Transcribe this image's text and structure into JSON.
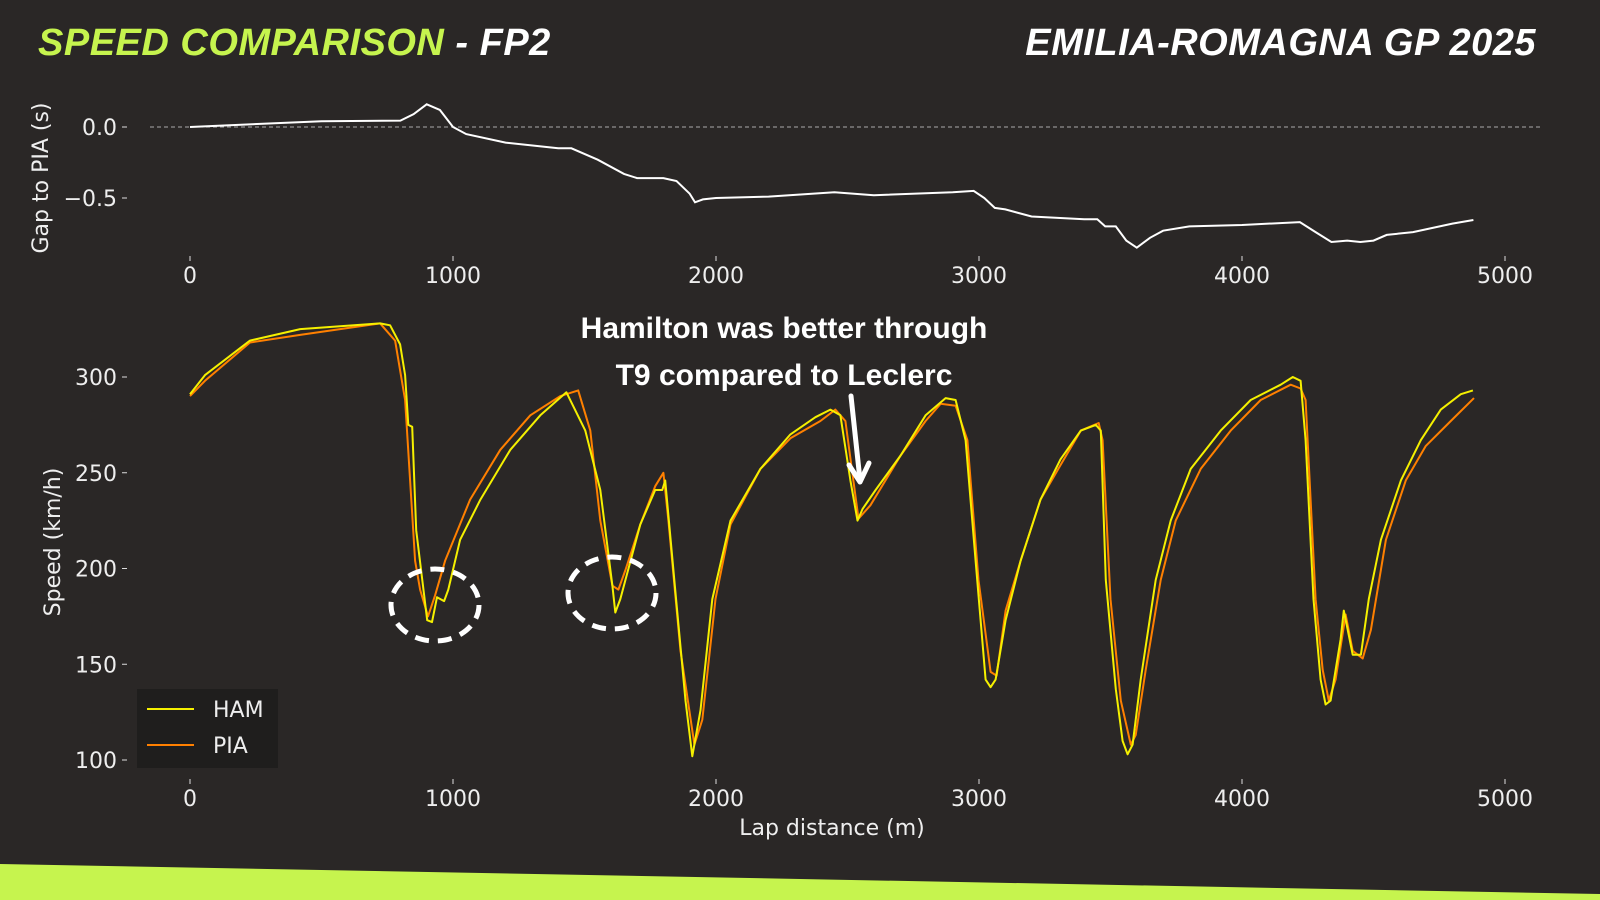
{
  "header": {
    "title_accent": "SPEED COMPARISON",
    "title_rest": " - FP2",
    "event": "EMILIA-ROMAGNA GP 2025"
  },
  "colors": {
    "accent": "#c6f44e",
    "ham": "#f5f000",
    "pia": "#ff8000",
    "gap": "#ffffff",
    "background": "#2a2726"
  },
  "annotation": {
    "line1": "Hamilton was better through",
    "line2": "T9 compared to Leclerc"
  },
  "chart_data": [
    {
      "type": "line",
      "title": "",
      "xlabel": "",
      "ylabel": "Gap to PIA (s)",
      "xlim": [
        -250,
        5100
      ],
      "ylim": [
        -0.95,
        0.3
      ],
      "xticks": [
        "0",
        "1000",
        "2000",
        "3000",
        "4000",
        "5000"
      ],
      "xtick_values": [
        0,
        1000,
        2000,
        3000,
        4000,
        5000
      ],
      "yticks": [
        "0.0",
        "−0.5"
      ],
      "ytick_values": [
        0,
        -0.5
      ],
      "reference_line": 0,
      "series": [
        {
          "name": "Gap",
          "points": [
            [
              0,
              0
            ],
            [
              300,
              0.025
            ],
            [
              500,
              0.04
            ],
            [
              800,
              0.045
            ],
            [
              850,
              0.09
            ],
            [
              900,
              0.16
            ],
            [
              950,
              0.12
            ],
            [
              1000,
              0.0
            ],
            [
              1050,
              -0.05
            ],
            [
              1200,
              -0.11
            ],
            [
              1400,
              -0.15
            ],
            [
              1450,
              -0.15
            ],
            [
              1550,
              -0.23
            ],
            [
              1650,
              -0.33
            ],
            [
              1700,
              -0.36
            ],
            [
              1800,
              -0.36
            ],
            [
              1850,
              -0.38
            ],
            [
              1900,
              -0.47
            ],
            [
              1920,
              -0.53
            ],
            [
              1950,
              -0.51
            ],
            [
              2000,
              -0.5
            ],
            [
              2200,
              -0.49
            ],
            [
              2450,
              -0.46
            ],
            [
              2600,
              -0.48
            ],
            [
              2900,
              -0.46
            ],
            [
              2980,
              -0.45
            ],
            [
              3020,
              -0.5
            ],
            [
              3060,
              -0.57
            ],
            [
              3100,
              -0.58
            ],
            [
              3200,
              -0.63
            ],
            [
              3400,
              -0.65
            ],
            [
              3450,
              -0.65
            ],
            [
              3480,
              -0.7
            ],
            [
              3520,
              -0.7
            ],
            [
              3560,
              -0.8
            ],
            [
              3600,
              -0.85
            ],
            [
              3650,
              -0.78
            ],
            [
              3700,
              -0.73
            ],
            [
              3800,
              -0.7
            ],
            [
              4000,
              -0.69
            ],
            [
              4220,
              -0.67
            ],
            [
              4280,
              -0.74
            ],
            [
              4340,
              -0.81
            ],
            [
              4400,
              -0.8
            ],
            [
              4450,
              -0.81
            ],
            [
              4500,
              -0.8
            ],
            [
              4550,
              -0.76
            ],
            [
              4650,
              -0.74
            ],
            [
              4800,
              -0.68
            ],
            [
              4880,
              -0.655
            ]
          ]
        }
      ]
    },
    {
      "type": "line",
      "title": "",
      "xlabel": "Lap distance (m)",
      "ylabel": "Speed (km/h)",
      "xlim": [
        -250,
        5100
      ],
      "ylim": [
        92,
        335
      ],
      "xticks": [
        "0",
        "1000",
        "2000",
        "3000",
        "4000",
        "5000"
      ],
      "xtick_values": [
        0,
        1000,
        2000,
        3000,
        4000,
        5000
      ],
      "yticks": [
        "100",
        "150",
        "200",
        "250",
        "300"
      ],
      "ytick_values": [
        100,
        150,
        200,
        250,
        300
      ],
      "legend": {
        "placement": "lower-left",
        "entries": [
          "HAM",
          "PIA"
        ]
      },
      "series": [
        {
          "name": "HAM",
          "points": [
            [
              0,
              291
            ],
            [
              57,
              301
            ],
            [
              228,
              319
            ],
            [
              419,
              325
            ],
            [
              723,
              328
            ],
            [
              761,
              327
            ],
            [
              799,
              317
            ],
            [
              818,
              301
            ],
            [
              830,
              275
            ],
            [
              845,
              274
            ],
            [
              860,
              220
            ],
            [
              902,
              173
            ],
            [
              920,
              172
            ],
            [
              939,
              185
            ],
            [
              966,
              183
            ],
            [
              982,
              189
            ],
            [
              1027,
              215
            ],
            [
              1104,
              236
            ],
            [
              1218,
              262
            ],
            [
              1332,
              280
            ],
            [
              1431,
              292
            ],
            [
              1503,
              272
            ],
            [
              1560,
              241
            ],
            [
              1606,
              191
            ],
            [
              1617,
              177
            ],
            [
              1636,
              184
            ],
            [
              1712,
              223
            ],
            [
              1769,
              241
            ],
            [
              1796,
              241
            ],
            [
              1807,
              246
            ],
            [
              1845,
              189
            ],
            [
              1884,
              131
            ],
            [
              1910,
              102
            ],
            [
              1941,
              126
            ],
            [
              1986,
              184
            ],
            [
              2055,
              225
            ],
            [
              2169,
              252
            ],
            [
              2283,
              270
            ],
            [
              2378,
              279
            ],
            [
              2435,
              283
            ],
            [
              2473,
              280
            ],
            [
              2511,
              246
            ],
            [
              2538,
              225
            ],
            [
              2557,
              231
            ],
            [
              2607,
              241
            ],
            [
              2702,
              259
            ],
            [
              2797,
              280
            ],
            [
              2873,
              289
            ],
            [
              2911,
              288
            ],
            [
              2949,
              267
            ],
            [
              2987,
              204
            ],
            [
              3025,
              142
            ],
            [
              3044,
              138
            ],
            [
              3063,
              142
            ],
            [
              3101,
              173
            ],
            [
              3158,
              204
            ],
            [
              3234,
              236
            ],
            [
              3310,
              257
            ],
            [
              3387,
              272
            ],
            [
              3444,
              275
            ],
            [
              3463,
              272
            ],
            [
              3482,
              194
            ],
            [
              3520,
              137
            ],
            [
              3546,
              110
            ],
            [
              3565,
              103
            ],
            [
              3584,
              108
            ],
            [
              3615,
              142
            ],
            [
              3672,
              194
            ],
            [
              3729,
              225
            ],
            [
              3805,
              252
            ],
            [
              3919,
              272
            ],
            [
              4033,
              288
            ],
            [
              4147,
              296
            ],
            [
              4193,
              300
            ],
            [
              4223,
              298
            ],
            [
              4242,
              267
            ],
            [
              4272,
              184
            ],
            [
              4299,
              142
            ],
            [
              4318,
              129
            ],
            [
              4337,
              131
            ],
            [
              4375,
              163
            ],
            [
              4387,
              178
            ],
            [
              4402,
              168
            ],
            [
              4421,
              155
            ],
            [
              4452,
              155
            ],
            [
              4482,
              184
            ],
            [
              4528,
              215
            ],
            [
              4604,
              246
            ],
            [
              4680,
              267
            ],
            [
              4756,
              283
            ],
            [
              4832,
              291
            ],
            [
              4878,
              293
            ]
          ]
        },
        {
          "name": "PIA",
          "points": [
            [
              0,
              290
            ],
            [
              57,
              298
            ],
            [
              228,
              318
            ],
            [
              419,
              322
            ],
            [
              723,
              328
            ],
            [
              780,
              319
            ],
            [
              818,
              288
            ],
            [
              837,
              246
            ],
            [
              856,
              204
            ],
            [
              875,
              189
            ],
            [
              905,
              175
            ],
            [
              932,
              186
            ],
            [
              970,
              204
            ],
            [
              1065,
              236
            ],
            [
              1180,
              262
            ],
            [
              1294,
              280
            ],
            [
              1408,
              290
            ],
            [
              1476,
              293
            ],
            [
              1522,
              272
            ],
            [
              1560,
              225
            ],
            [
              1606,
              191
            ],
            [
              1629,
              189
            ],
            [
              1655,
              199
            ],
            [
              1712,
              223
            ],
            [
              1769,
              243
            ],
            [
              1800,
              250
            ],
            [
              1819,
              225
            ],
            [
              1865,
              157
            ],
            [
              1918,
              108
            ],
            [
              1948,
              121
            ],
            [
              1998,
              184
            ],
            [
              2055,
              223
            ],
            [
              2169,
              252
            ],
            [
              2283,
              268
            ],
            [
              2397,
              277
            ],
            [
              2454,
              283
            ],
            [
              2492,
              277
            ],
            [
              2542,
              226
            ],
            [
              2587,
              233
            ],
            [
              2702,
              259
            ],
            [
              2797,
              277
            ],
            [
              2854,
              286
            ],
            [
              2911,
              285
            ],
            [
              2956,
              267
            ],
            [
              2998,
              194
            ],
            [
              3044,
              146
            ],
            [
              3067,
              144
            ],
            [
              3101,
              178
            ],
            [
              3158,
              204
            ],
            [
              3234,
              236
            ],
            [
              3310,
              254
            ],
            [
              3387,
              272
            ],
            [
              3455,
              276
            ],
            [
              3470,
              267
            ],
            [
              3500,
              184
            ],
            [
              3539,
              131
            ],
            [
              3577,
              108
            ],
            [
              3596,
              113
            ],
            [
              3634,
              147
            ],
            [
              3691,
              194
            ],
            [
              3748,
              225
            ],
            [
              3843,
              252
            ],
            [
              3957,
              272
            ],
            [
              4071,
              288
            ],
            [
              4185,
              296
            ],
            [
              4223,
              294
            ],
            [
              4242,
              288
            ],
            [
              4280,
              184
            ],
            [
              4307,
              147
            ],
            [
              4330,
              131
            ],
            [
              4356,
              142
            ],
            [
              4394,
              176
            ],
            [
              4421,
              157
            ],
            [
              4459,
              153
            ],
            [
              4490,
              168
            ],
            [
              4547,
              215
            ],
            [
              4623,
              246
            ],
            [
              4699,
              264
            ],
            [
              4794,
              277
            ],
            [
              4882,
              289
            ]
          ]
        }
      ]
    }
  ]
}
